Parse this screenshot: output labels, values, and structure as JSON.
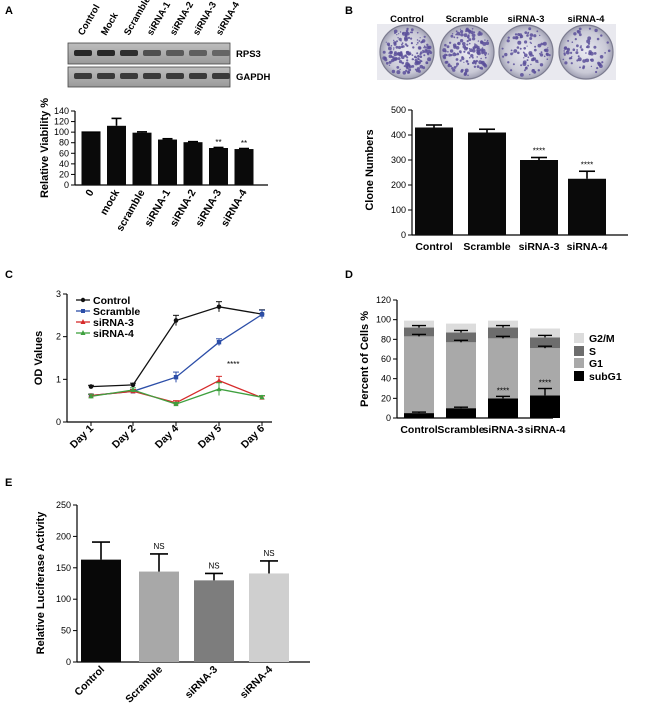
{
  "panels": {
    "a": "A",
    "b": "B",
    "c": "C",
    "d": "D",
    "e": "E"
  },
  "colors": {
    "bar_black": "#0a0a0a",
    "line_control": "#111111",
    "line_scramble": "#2c4ea8",
    "line_sirna3": "#d62b2b",
    "line_sirna4": "#3fa03f",
    "stack_g2m": "#dcdcdc",
    "stack_s": "#6d6d6d",
    "stack_g1": "#a9a9a9",
    "stack_subg1": "#000000",
    "plate_purple": "#5a4f9a"
  },
  "blot": {
    "lanes": [
      "Control",
      "Mock",
      "Scramble",
      "siRNA-1",
      "siRNA-2",
      "siRNA-3",
      "siRNA-4"
    ],
    "rows": [
      "RPS3",
      "GAPDH"
    ]
  },
  "plates": {
    "labels": [
      "Control",
      "Scramble",
      "siRNA-3",
      "siRNA-4"
    ]
  },
  "chart_data": [
    {
      "id": "A",
      "type": "bar",
      "categories": [
        "0",
        "mock",
        "scramble",
        "siRNA-1",
        "siRNA-2",
        "siRNA-3",
        "siRNA-4"
      ],
      "values": [
        100,
        112,
        99,
        86,
        81,
        70,
        68
      ],
      "errors": [
        0,
        14,
        1.5,
        1.5,
        1,
        1,
        1
      ],
      "significance": [
        "",
        "",
        "",
        "",
        "",
        "**",
        "**"
      ],
      "ylabel": "Relative Viability %",
      "ylim": [
        0,
        140
      ],
      "yticks": [
        "0",
        "20",
        "40",
        "60",
        "80",
        "100",
        "120",
        "140"
      ]
    },
    {
      "id": "B",
      "type": "bar",
      "categories": [
        "Control",
        "Scramble",
        "siRNA-3",
        "siRNA-4"
      ],
      "values": [
        430,
        410,
        300,
        225
      ],
      "errors": [
        10,
        13,
        10,
        30
      ],
      "significance": [
        "",
        "",
        "****",
        "****"
      ],
      "ylabel": "Clone Numbers",
      "ylim": [
        0,
        500
      ],
      "yticks": [
        "0",
        "100",
        "200",
        "300",
        "400",
        "500"
      ]
    },
    {
      "id": "C",
      "type": "line",
      "categories": [
        "Day 1",
        "Day 2",
        "Day 4",
        "Day 5",
        "Day 6"
      ],
      "series": [
        {
          "name": "Control",
          "values": [
            0.83,
            0.87,
            2.38,
            2.7,
            2.53
          ],
          "errors": [
            0.03,
            0.04,
            0.12,
            0.12,
            0.1
          ]
        },
        {
          "name": "Scramble",
          "values": [
            0.62,
            0.72,
            1.05,
            1.87,
            2.52
          ],
          "errors": [
            0.03,
            0.04,
            0.12,
            0.08,
            0.1
          ]
        },
        {
          "name": "siRNA-3",
          "values": [
            0.62,
            0.72,
            0.45,
            0.97,
            0.57
          ],
          "errors": [
            0.03,
            0.04,
            0.05,
            0.1,
            0.04
          ]
        },
        {
          "name": "siRNA-4",
          "values": [
            0.6,
            0.75,
            0.42,
            0.77,
            0.58
          ],
          "errors": [
            0.05,
            0.05,
            0.04,
            0.15,
            0.04
          ]
        }
      ],
      "annotation": "****",
      "ylabel": "OD Values",
      "ylim": [
        0,
        3
      ],
      "yticks": [
        "0",
        "1",
        "2",
        "3"
      ]
    },
    {
      "id": "D",
      "type": "bar",
      "stacked": true,
      "categories": [
        "Control",
        "Scramble",
        "siRNA-3",
        "siRNA-4"
      ],
      "series": [
        {
          "name": "subG1",
          "values": [
            5,
            10,
            20,
            23
          ],
          "errors": [
            1,
            1,
            2,
            7
          ]
        },
        {
          "name": "G1",
          "values": [
            78,
            67,
            61,
            48
          ],
          "errors": [
            2,
            2,
            2,
            2
          ]
        },
        {
          "name": "S",
          "values": [
            9,
            10,
            11,
            11
          ],
          "errors": [
            2,
            2,
            2,
            2
          ]
        },
        {
          "name": "G2/M",
          "values": [
            7,
            9,
            7,
            9
          ],
          "errors": [
            0,
            0,
            0,
            0
          ]
        }
      ],
      "legend_order": [
        "G2/M",
        "S",
        "G1",
        "subG1"
      ],
      "significance": [
        "",
        "",
        "****",
        "****"
      ],
      "ylabel": "Percent of Cells %",
      "ylim": [
        0,
        120
      ],
      "yticks": [
        "0",
        "20",
        "40",
        "60",
        "80",
        "100",
        "120"
      ]
    },
    {
      "id": "E",
      "type": "bar",
      "categories": [
        "Control",
        "Scramble",
        "siRNA-3",
        "siRNA-4"
      ],
      "values": [
        163,
        144,
        130,
        141
      ],
      "errors": [
        28,
        28,
        11,
        20
      ],
      "significance": [
        "",
        "NS",
        "NS",
        "NS"
      ],
      "ylabel": "Relative Luciferase Activity",
      "ylim": [
        0,
        250
      ],
      "yticks": [
        "0",
        "50",
        "100",
        "150",
        "200",
        "250"
      ]
    }
  ]
}
